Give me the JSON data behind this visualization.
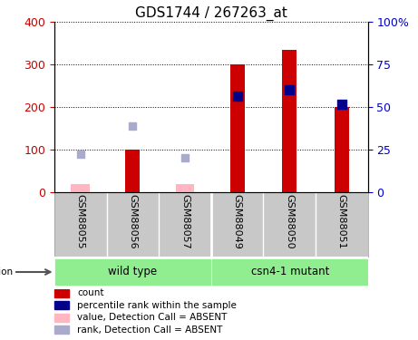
{
  "title": "GDS1744 / 267263_at",
  "samples": [
    "GSM88055",
    "GSM88056",
    "GSM88057",
    "GSM88049",
    "GSM88050",
    "GSM88051"
  ],
  "count_values": [
    null,
    100,
    null,
    300,
    335,
    200
  ],
  "count_absent_values": [
    20,
    null,
    20,
    null,
    null,
    null
  ],
  "rank_values": [
    null,
    null,
    null,
    225,
    240,
    207
  ],
  "rank_absent_values": [
    90,
    155,
    80,
    null,
    null,
    null
  ],
  "count_color": "#CC0000",
  "count_absent_color": "#FFB6C1",
  "rank_color": "#00008B",
  "rank_absent_color": "#AAAACC",
  "left_tick_color": "#CC0000",
  "right_tick_color": "#0000CC",
  "green_color": "#90EE90",
  "bar_width": 0.28,
  "legend_items": [
    {
      "label": "count",
      "color": "#CC0000"
    },
    {
      "label": "percentile rank within the sample",
      "color": "#00008B"
    },
    {
      "label": "value, Detection Call = ABSENT",
      "color": "#FFB6C1"
    },
    {
      "label": "rank, Detection Call = ABSENT",
      "color": "#AAAACC"
    }
  ]
}
